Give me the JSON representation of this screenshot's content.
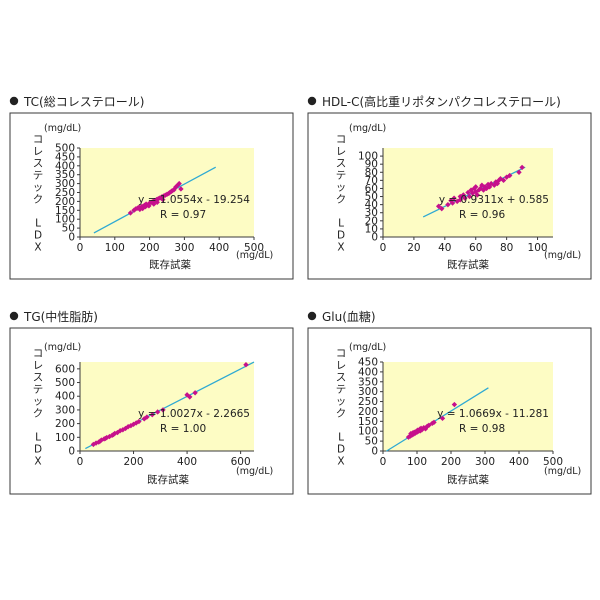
{
  "colors": {
    "plot_bg": "#fdfcc4",
    "frame": "#3a3a3a",
    "line": "#2ea9d3",
    "point": "#c6108c",
    "bullet": "#222222"
  },
  "chart_data": [
    {
      "type": "scatter",
      "title": "TC(総コレステロール)",
      "xlabel": "既存試薬",
      "ylabel": "コレステック LDX",
      "x_unit": "(mg/dL)",
      "y_unit": "(mg/dL)",
      "xlim": [
        0,
        500
      ],
      "ylim": [
        0,
        500
      ],
      "xticks": [
        0,
        100,
        200,
        300,
        400,
        500
      ],
      "yticks": [
        0,
        50,
        100,
        150,
        200,
        250,
        300,
        350,
        400,
        450,
        500
      ],
      "grid": false,
      "equation": "y = 1.0554x - 19.254",
      "r_text": "R = 0.97",
      "fit": {
        "slope": 1.0554,
        "intercept": -19.254,
        "x_range": [
          40,
          390
        ]
      },
      "points": [
        [
          145,
          135
        ],
        [
          155,
          150
        ],
        [
          160,
          158
        ],
        [
          165,
          162
        ],
        [
          170,
          168
        ],
        [
          172,
          155
        ],
        [
          175,
          165
        ],
        [
          178,
          172
        ],
        [
          180,
          160
        ],
        [
          185,
          178
        ],
        [
          188,
          170
        ],
        [
          190,
          185
        ],
        [
          195,
          180
        ],
        [
          198,
          175
        ],
        [
          200,
          190
        ],
        [
          205,
          195
        ],
        [
          210,
          200
        ],
        [
          212,
          185
        ],
        [
          215,
          205
        ],
        [
          220,
          210
        ],
        [
          222,
          195
        ],
        [
          225,
          215
        ],
        [
          230,
          220
        ],
        [
          235,
          225
        ],
        [
          238,
          210
        ],
        [
          240,
          230
        ],
        [
          245,
          235
        ],
        [
          250,
          240
        ],
        [
          255,
          245
        ],
        [
          258,
          250
        ],
        [
          262,
          255
        ],
        [
          265,
          260
        ],
        [
          270,
          265
        ],
        [
          275,
          280
        ],
        [
          280,
          290
        ],
        [
          285,
          300
        ],
        [
          290,
          270
        ]
      ]
    },
    {
      "type": "scatter",
      "title": "HDL-C(高比重リポタンパクコレステロール)",
      "xlabel": "既存試薬",
      "ylabel": "コレステック LDX",
      "x_unit": "(mg/dL)",
      "y_unit": "(mg/dL)",
      "xlim": [
        0,
        110
      ],
      "ylim": [
        0,
        110
      ],
      "xticks": [
        0,
        20,
        40,
        60,
        80,
        100
      ],
      "yticks": [
        0,
        10,
        20,
        30,
        40,
        50,
        60,
        70,
        80,
        90,
        100
      ],
      "grid": false,
      "equation": "y = 0.9311x + 0.585",
      "r_text": "R = 0.96",
      "fit": {
        "slope": 0.9311,
        "intercept": 0.585,
        "x_range": [
          26,
          92
        ]
      },
      "points": [
        [
          36,
          38
        ],
        [
          38,
          35
        ],
        [
          42,
          40
        ],
        [
          44,
          45
        ],
        [
          45,
          42
        ],
        [
          46,
          48
        ],
        [
          48,
          44
        ],
        [
          50,
          50
        ],
        [
          50,
          46
        ],
        [
          52,
          52
        ],
        [
          53,
          48
        ],
        [
          55,
          55
        ],
        [
          56,
          50
        ],
        [
          57,
          58
        ],
        [
          58,
          54
        ],
        [
          59,
          60
        ],
        [
          60,
          56
        ],
        [
          60,
          62
        ],
        [
          61,
          52
        ],
        [
          62,
          58
        ],
        [
          63,
          60
        ],
        [
          64,
          64
        ],
        [
          65,
          58
        ],
        [
          66,
          62
        ],
        [
          67,
          60
        ],
        [
          68,
          65
        ],
        [
          69,
          62
        ],
        [
          70,
          66
        ],
        [
          72,
          64
        ],
        [
          73,
          68
        ],
        [
          74,
          66
        ],
        [
          75,
          70
        ],
        [
          76,
          72
        ],
        [
          78,
          70
        ],
        [
          80,
          74
        ],
        [
          82,
          76
        ],
        [
          88,
          80
        ],
        [
          90,
          86
        ]
      ]
    },
    {
      "type": "scatter",
      "title": "TG(中性脂肪)",
      "xlabel": "既存試薬",
      "ylabel": "コレステック LDX",
      "x_unit": "(mg/dL)",
      "y_unit": "(mg/dL)",
      "xlim": [
        0,
        650
      ],
      "ylim": [
        0,
        650
      ],
      "xticks": [
        0,
        200,
        400,
        600
      ],
      "yticks": [
        0,
        100,
        200,
        300,
        400,
        500,
        600
      ],
      "grid": false,
      "equation": "y = 1.0027x - 2.2665",
      "r_text": "R = 1.00",
      "fit": {
        "slope": 1.0027,
        "intercept": -2.2665,
        "x_range": [
          20,
          650
        ]
      },
      "points": [
        [
          50,
          48
        ],
        [
          60,
          58
        ],
        [
          70,
          65
        ],
        [
          75,
          72
        ],
        [
          80,
          80
        ],
        [
          90,
          88
        ],
        [
          95,
          92
        ],
        [
          100,
          98
        ],
        [
          110,
          105
        ],
        [
          120,
          115
        ],
        [
          125,
          120
        ],
        [
          130,
          128
        ],
        [
          140,
          135
        ],
        [
          150,
          148
        ],
        [
          160,
          155
        ],
        [
          170,
          165
        ],
        [
          180,
          178
        ],
        [
          190,
          185
        ],
        [
          200,
          195
        ],
        [
          210,
          205
        ],
        [
          220,
          215
        ],
        [
          240,
          235
        ],
        [
          250,
          248
        ],
        [
          270,
          265
        ],
        [
          290,
          285
        ],
        [
          310,
          300
        ],
        [
          400,
          410
        ],
        [
          410,
          395
        ],
        [
          430,
          425
        ],
        [
          620,
          630
        ]
      ]
    },
    {
      "type": "scatter",
      "title": "Glu(血糖)",
      "xlabel": "既存試薬",
      "ylabel": "コレステック LDX",
      "x_unit": "(mg/dL)",
      "y_unit": "(mg/dL)",
      "xlim": [
        0,
        500
      ],
      "ylim": [
        0,
        450
      ],
      "xticks": [
        0,
        100,
        200,
        300,
        400,
        500
      ],
      "yticks": [
        0,
        50,
        100,
        150,
        200,
        250,
        300,
        350,
        400,
        450
      ],
      "grid": false,
      "equation": "y = 1.0669x - 11.281",
      "r_text": "R = 0.98",
      "fit": {
        "slope": 1.0669,
        "intercept": -11.281,
        "x_range": [
          10,
          310
        ]
      },
      "points": [
        [
          75,
          70
        ],
        [
          80,
          75
        ],
        [
          82,
          88
        ],
        [
          85,
          80
        ],
        [
          88,
          92
        ],
        [
          90,
          85
        ],
        [
          92,
          95
        ],
        [
          95,
          90
        ],
        [
          98,
          100
        ],
        [
          100,
          95
        ],
        [
          102,
          105
        ],
        [
          105,
          100
        ],
        [
          108,
          110
        ],
        [
          110,
          102
        ],
        [
          112,
          115
        ],
        [
          115,
          108
        ],
        [
          120,
          118
        ],
        [
          125,
          112
        ],
        [
          130,
          125
        ],
        [
          135,
          130
        ],
        [
          145,
          140
        ],
        [
          150,
          145
        ],
        [
          175,
          165
        ],
        [
          210,
          235
        ]
      ]
    }
  ]
}
